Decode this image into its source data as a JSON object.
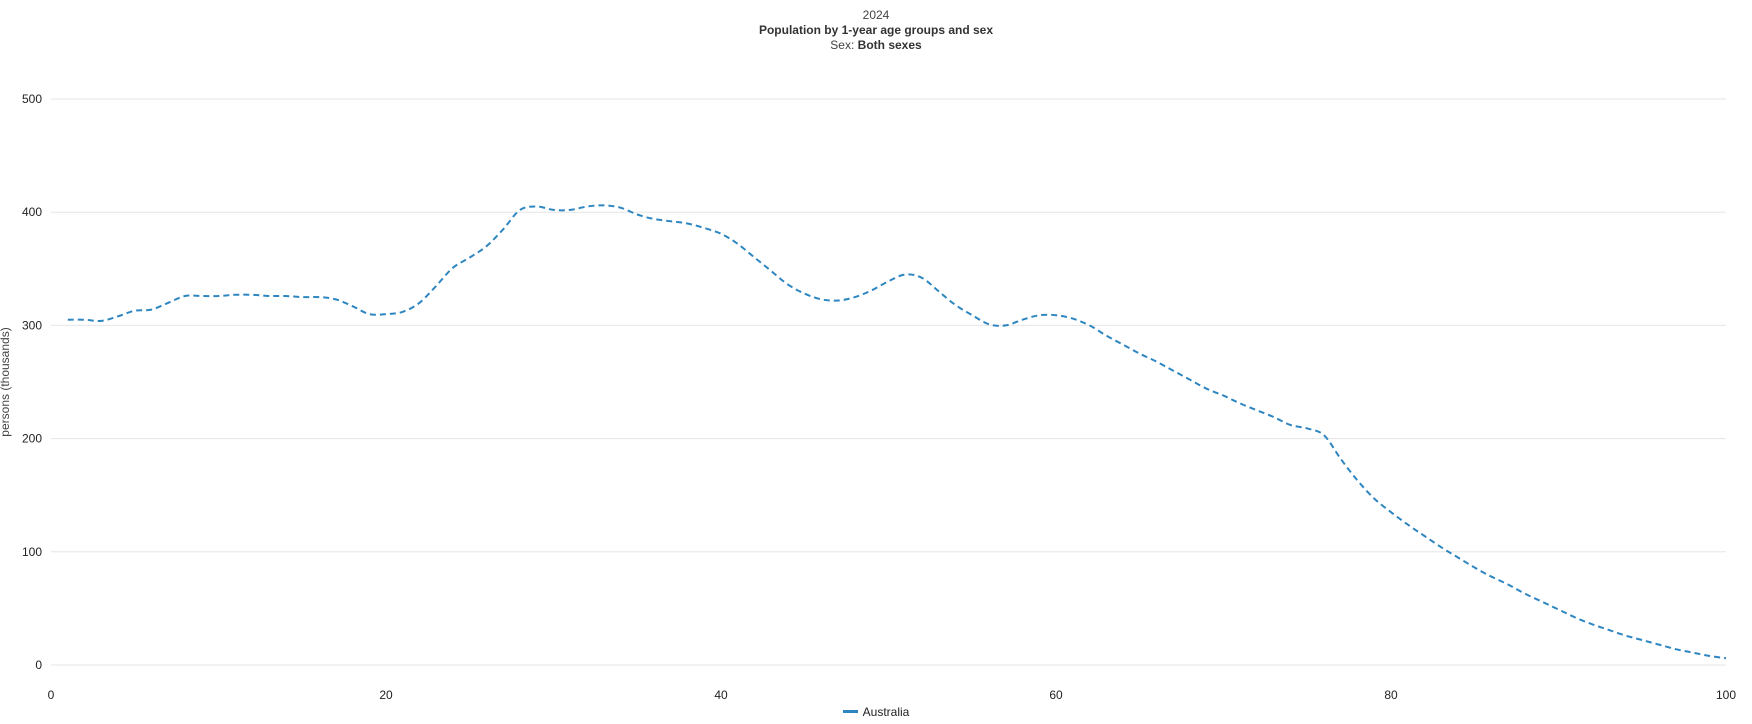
{
  "header": {
    "year": "2024",
    "title": "Population by 1-year age groups and sex",
    "sex_label": "Sex:",
    "sex_value": "Both sexes"
  },
  "legend": {
    "label": "Australia"
  },
  "colors": {
    "series": "#2e86c1",
    "grid": "#e6e6e6"
  },
  "chart_data": {
    "type": "line",
    "title": "Population by 1-year age groups and sex",
    "subtitle": "2024",
    "xlabel": "",
    "ylabel": "persons (thousands)",
    "xlim": [
      0,
      100
    ],
    "ylim": [
      0,
      500
    ],
    "xticks": [
      0,
      20,
      40,
      60,
      80,
      100
    ],
    "yticks": [
      0,
      100,
      200,
      300,
      400,
      500
    ],
    "grid": "horizontal",
    "legend_position": "bottom",
    "series": [
      {
        "name": "Australia",
        "line_style": "dashed",
        "x": [
          1,
          2,
          3,
          4,
          5,
          6,
          7,
          8,
          9,
          10,
          11,
          12,
          13,
          14,
          15,
          16,
          17,
          18,
          19,
          20,
          21,
          22,
          23,
          24,
          25,
          26,
          27,
          28,
          29,
          30,
          31,
          32,
          33,
          34,
          35,
          36,
          37,
          38,
          39,
          40,
          41,
          42,
          43,
          44,
          45,
          46,
          47,
          48,
          49,
          50,
          51,
          52,
          53,
          54,
          55,
          56,
          57,
          58,
          59,
          60,
          61,
          62,
          63,
          64,
          65,
          66,
          67,
          68,
          69,
          70,
          71,
          72,
          73,
          74,
          75,
          76,
          77,
          78,
          79,
          80,
          81,
          82,
          83,
          84,
          85,
          86,
          87,
          88,
          89,
          90,
          91,
          92,
          93,
          94,
          95,
          96,
          97,
          98,
          99,
          100
        ],
        "values": [
          305,
          305,
          304,
          308,
          313,
          314,
          320,
          326,
          326,
          326,
          327,
          327,
          326,
          326,
          325,
          325,
          323,
          317,
          310,
          310,
          312,
          320,
          335,
          351,
          360,
          370,
          385,
          402,
          405,
          402,
          402,
          405,
          406,
          404,
          398,
          394,
          392,
          390,
          386,
          381,
          372,
          360,
          348,
          336,
          328,
          323,
          322,
          325,
          331,
          339,
          345,
          342,
          330,
          318,
          309,
          301,
          300,
          305,
          309,
          309,
          306,
          300,
          291,
          283,
          275,
          268,
          260,
          252,
          244,
          238,
          231,
          225,
          219,
          212,
          209,
          203,
          182,
          163,
          147,
          135,
          124,
          114,
          104,
          95,
          86,
          78,
          71,
          63,
          56,
          49,
          42,
          36,
          31,
          26,
          22,
          18,
          14,
          11,
          8,
          6
        ]
      }
    ]
  }
}
